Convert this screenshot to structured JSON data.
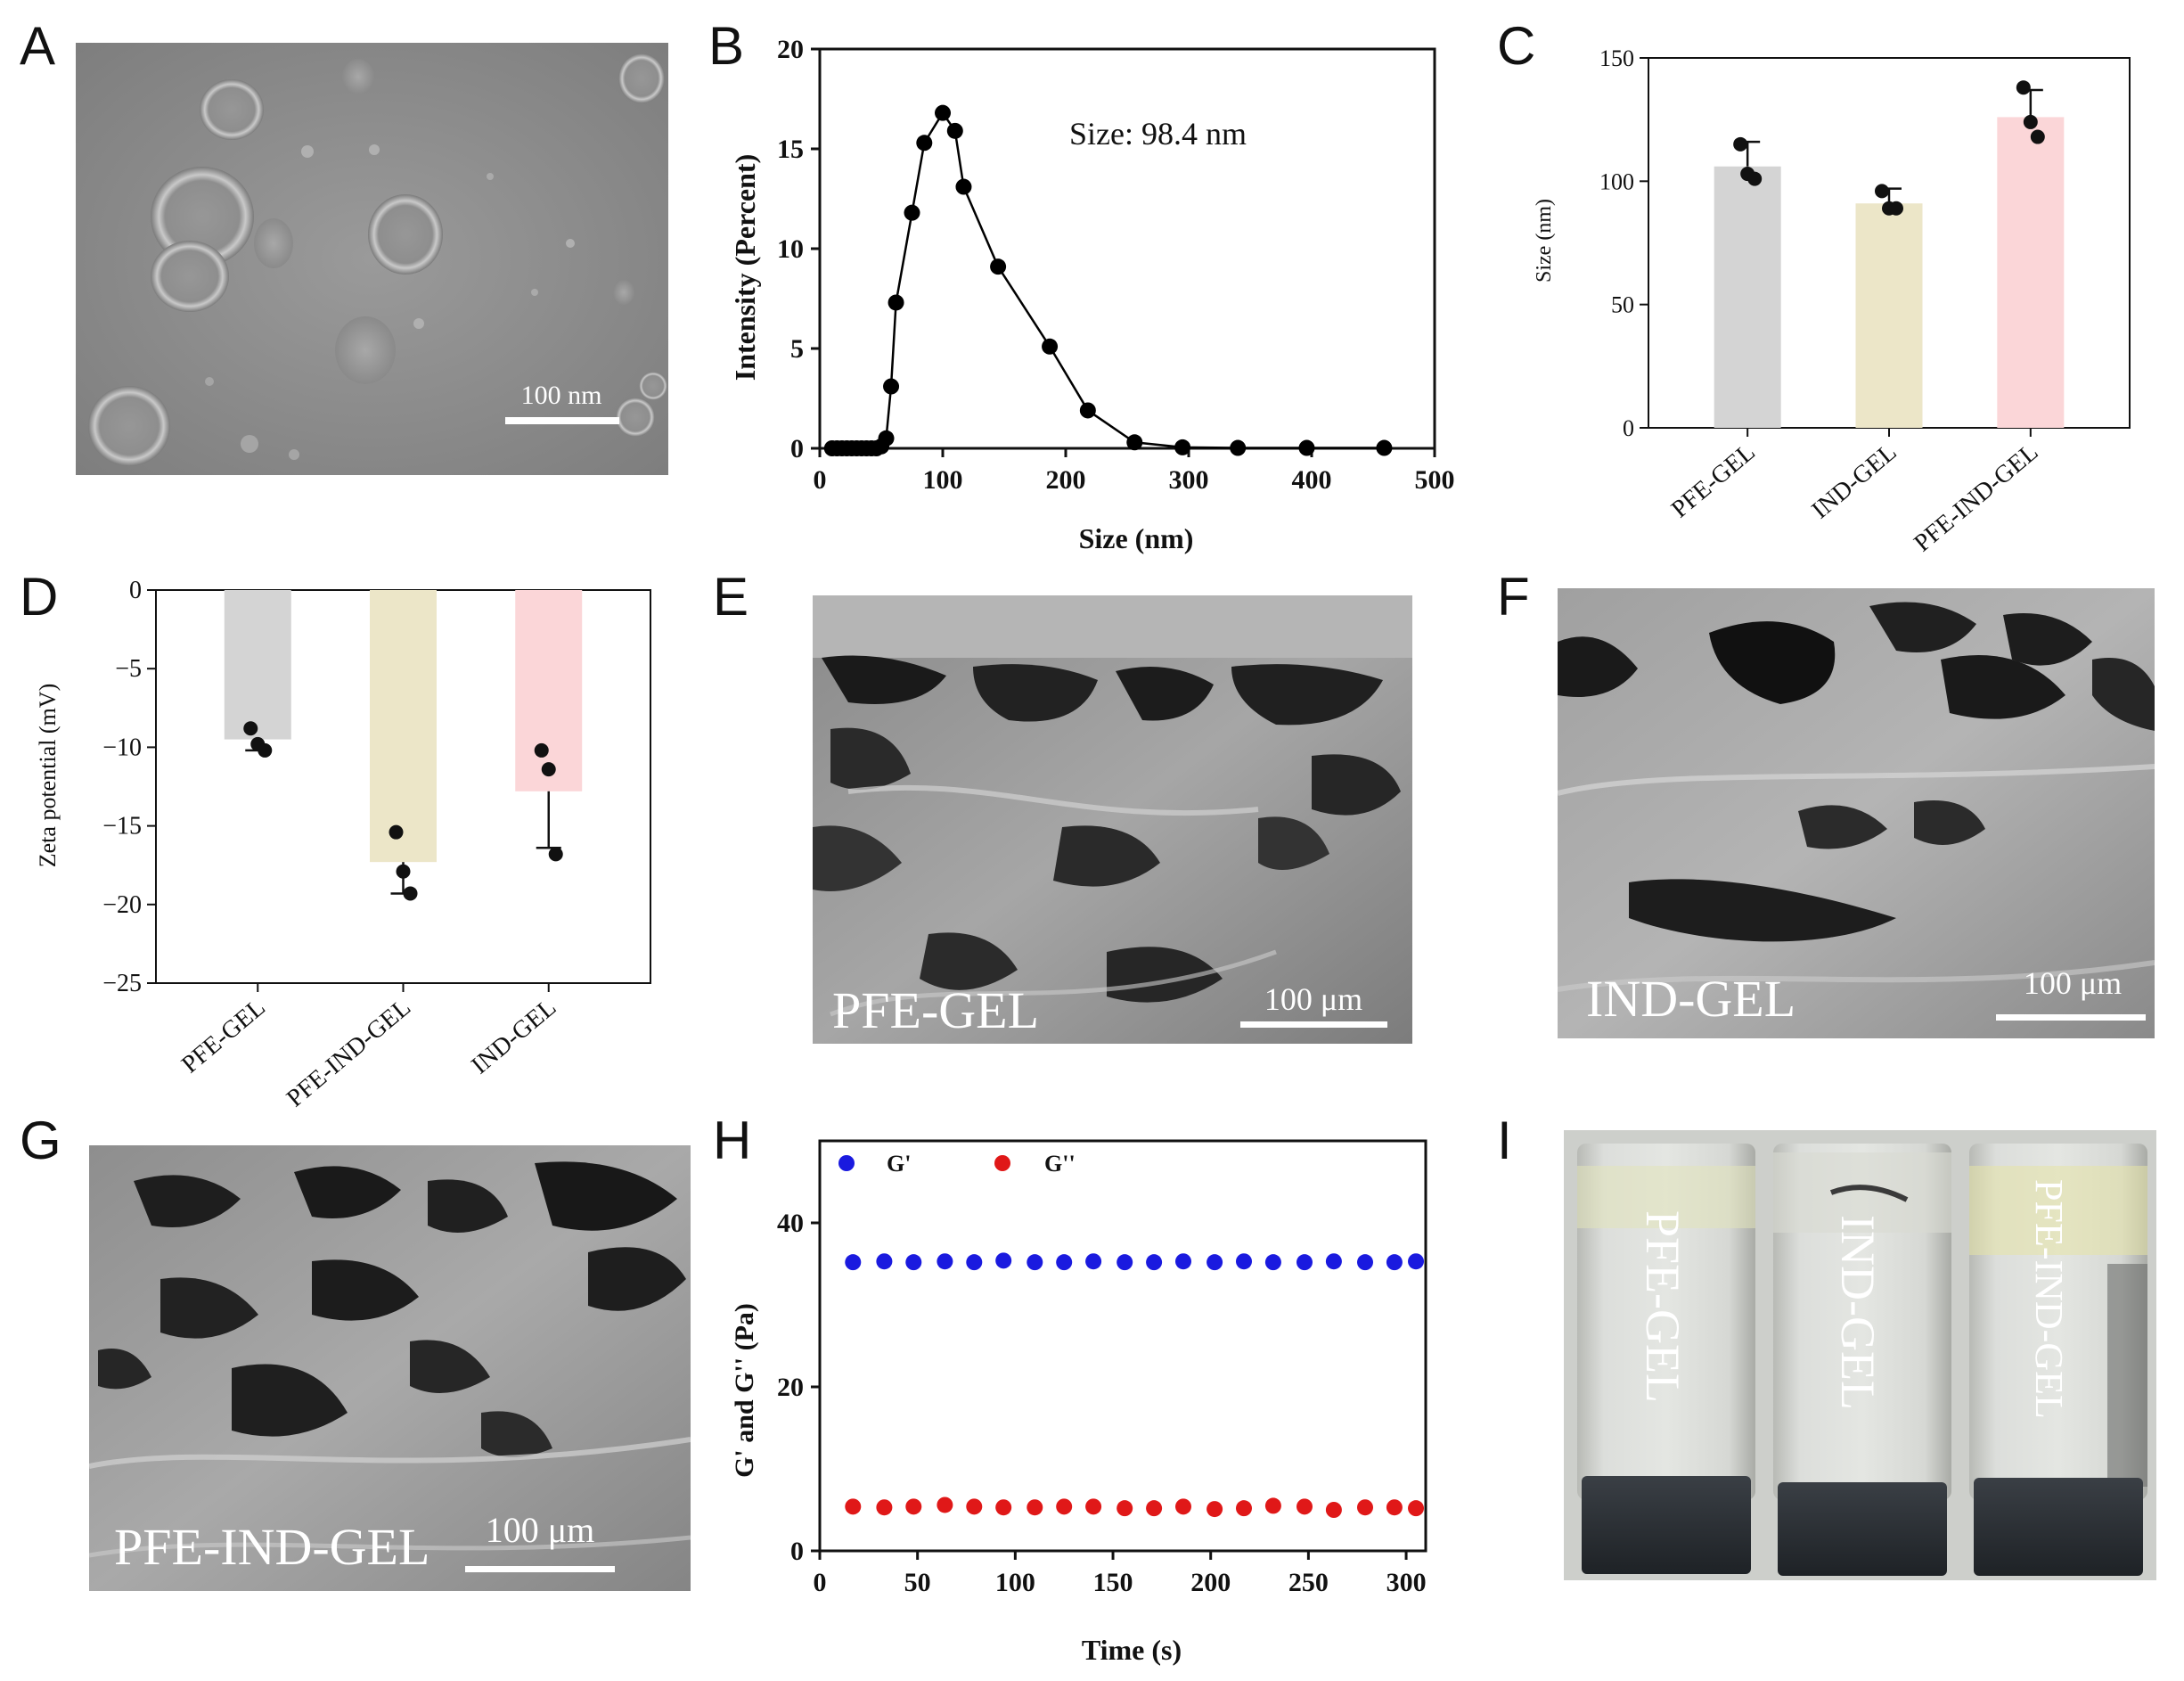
{
  "panels": {
    "A": {
      "letter": "A",
      "scale_label": "100 nm"
    },
    "B": {
      "letter": "B"
    },
    "C": {
      "letter": "C"
    },
    "D": {
      "letter": "D"
    },
    "E": {
      "letter": "E",
      "sample_label": "PFE-GEL",
      "scale_label": "100 μm"
    },
    "F": {
      "letter": "F",
      "sample_label": "IND-GEL",
      "scale_label": "100 μm"
    },
    "G": {
      "letter": "G",
      "sample_label": "PFE-IND-GEL",
      "scale_label": "100 μm"
    },
    "H": {
      "letter": "H"
    },
    "I": {
      "letter": "I",
      "vial_labels": [
        "PFE-GEL",
        "IND-GEL",
        "PFE-IND-GEL"
      ]
    }
  },
  "chart_data": [
    {
      "id": "B",
      "type": "line",
      "title": "",
      "xlabel": "Size (nm)",
      "ylabel": "Intensity (Percent)",
      "annotation": "Size: 98.4 nm",
      "xlim": [
        0,
        500
      ],
      "ylim": [
        0,
        20
      ],
      "xticks": [
        0,
        100,
        200,
        300,
        400,
        500
      ],
      "yticks": [
        0,
        5,
        10,
        15,
        20
      ],
      "x": [
        10,
        14,
        18,
        22,
        26,
        30,
        34,
        38,
        42,
        46,
        50,
        54,
        58,
        62,
        75,
        85,
        100,
        110,
        117,
        145,
        187,
        218,
        256,
        295,
        340,
        396,
        459
      ],
      "y": [
        0,
        0,
        0,
        0,
        0,
        0,
        0,
        0,
        0,
        0,
        0.1,
        0.5,
        3.1,
        7.3,
        11.8,
        15.3,
        16.8,
        15.9,
        13.1,
        9.1,
        5.1,
        1.9,
        0.3,
        0.05,
        0.02,
        0.02,
        0.02
      ],
      "color": "#000000",
      "grid": false
    },
    {
      "id": "C",
      "type": "bar",
      "title": "",
      "xlabel": "",
      "ylabel": "Size (nm)",
      "ylim": [
        0,
        150
      ],
      "yticks": [
        0,
        50,
        100,
        150
      ],
      "categories": [
        "PFE-GEL",
        "IND-GEL",
        "PFE-IND-GEL"
      ],
      "values": [
        106,
        91,
        126
      ],
      "errors": [
        10,
        6,
        11
      ],
      "points": [
        [
          115,
          103,
          101
        ],
        [
          96,
          89,
          89
        ],
        [
          138,
          124,
          118
        ]
      ],
      "colors": [
        "#d4d4d4",
        "#ece6c8",
        "#fbd6d8"
      ],
      "grid": false
    },
    {
      "id": "D",
      "type": "bar",
      "title": "",
      "xlabel": "",
      "ylabel": "Zeta potential (mV)",
      "ylim": [
        -25,
        0
      ],
      "yticks": [
        0,
        -5,
        -10,
        -15,
        -20,
        -25
      ],
      "categories": [
        "PFE-GEL",
        "PFE-IND-GEL",
        "IND-GEL"
      ],
      "values": [
        -9.5,
        -17.3,
        -12.8
      ],
      "errors": [
        0.7,
        2.0,
        3.6
      ],
      "points": [
        [
          -8.8,
          -9.8,
          -10.2
        ],
        [
          -15.4,
          -17.9,
          -19.3
        ],
        [
          -10.2,
          -11.4,
          -16.8
        ]
      ],
      "colors": [
        "#d4d4d4",
        "#ece6c8",
        "#fbd6d8"
      ],
      "grid": false
    },
    {
      "id": "H",
      "type": "scatter",
      "title": "",
      "xlabel": "Time (s)",
      "ylabel": "G' and G'' (Pa)",
      "xlim": [
        0,
        310
      ],
      "ylim": [
        0,
        50
      ],
      "xticks": [
        0,
        50,
        100,
        150,
        200,
        250,
        300
      ],
      "yticks": [
        0,
        20,
        40
      ],
      "legend_position": "top-left",
      "x": [
        17,
        33,
        48,
        64,
        79,
        94,
        110,
        125,
        140,
        156,
        171,
        186,
        202,
        217,
        232,
        248,
        263,
        279,
        294,
        305
      ],
      "series": [
        {
          "name": "G'",
          "color": "#1a1adf",
          "values": [
            35.2,
            35.3,
            35.2,
            35.3,
            35.2,
            35.4,
            35.2,
            35.2,
            35.3,
            35.2,
            35.2,
            35.3,
            35.2,
            35.3,
            35.2,
            35.2,
            35.3,
            35.2,
            35.2,
            35.3
          ]
        },
        {
          "name": "G''",
          "color": "#e01818",
          "values": [
            5.4,
            5.3,
            5.4,
            5.6,
            5.4,
            5.3,
            5.3,
            5.4,
            5.4,
            5.2,
            5.2,
            5.4,
            5.1,
            5.2,
            5.5,
            5.4,
            5.0,
            5.3,
            5.3,
            5.2
          ]
        }
      ],
      "grid": false
    }
  ]
}
